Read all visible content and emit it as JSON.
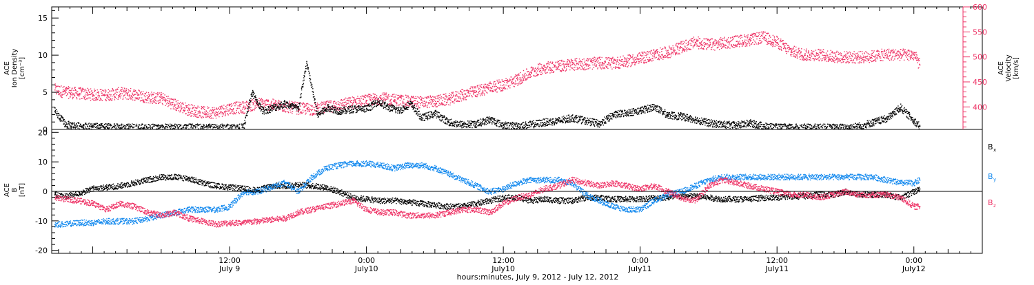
{
  "colors": {
    "black": "#000000",
    "red": "#ee3366",
    "blue": "#1188ee"
  },
  "time_axis": {
    "title": "hours:minutes, July  9, 2012 - July 12, 2012",
    "range_days": [
      7.85,
      11.25
    ],
    "ticks": [
      {
        "t": 8.5,
        "time": "12:00",
        "date": "July 9"
      },
      {
        "t": 9.0,
        "time": "0:00",
        "date": "July10"
      },
      {
        "t": 9.5,
        "time": "12:00",
        "date": "July10"
      },
      {
        "t": 10.0,
        "time": "0:00",
        "date": "July11"
      },
      {
        "t": 10.5,
        "time": "12:00",
        "date": "July11"
      },
      {
        "t": 11.0,
        "time": "0:00",
        "date": "July12"
      }
    ]
  },
  "chart_data": [
    {
      "type": "scatter",
      "panel": "top",
      "ylabel_left": [
        "ACE",
        "Ion Density",
        "[cm⁻³]"
      ],
      "ylabel_right": [
        "ACE",
        "Velocity",
        "[km/s]"
      ],
      "ylim_left": [
        0,
        16.5
      ],
      "ylim_right": [
        355,
        600
      ],
      "yticks_left": [
        "0",
        "5",
        "10",
        "15"
      ],
      "yticks_right": [
        "400",
        "450",
        "500",
        "550",
        "600"
      ],
      "series": [
        {
          "axis": "left",
          "color": "black",
          "x": [
            7.86,
            7.9,
            7.95,
            8.0,
            8.1,
            8.2,
            8.3,
            8.4,
            8.5,
            8.55,
            8.58,
            8.62,
            8.66,
            8.7,
            8.75,
            8.78,
            8.82,
            8.86,
            8.9,
            8.95,
            9.0,
            9.04,
            9.08,
            9.12,
            9.16,
            9.2,
            9.25,
            9.3,
            9.35,
            9.4,
            9.45,
            9.5,
            9.55,
            9.6,
            9.65,
            9.7,
            9.75,
            9.8,
            9.85,
            9.9,
            9.95,
            10.0,
            10.05,
            10.1,
            10.15,
            10.2,
            10.25,
            10.3,
            10.35,
            10.4,
            10.45,
            10.5,
            10.55,
            10.6,
            10.65,
            10.7,
            10.75,
            10.8,
            10.85,
            10.9,
            10.95,
            11.0,
            11.02
          ],
          "y": [
            2.5,
            0.7,
            0.5,
            0.4,
            0.3,
            0.3,
            0.3,
            0.3,
            0.3,
            0.3,
            5,
            2.5,
            3,
            3.5,
            2.8,
            9,
            2,
            3,
            2.5,
            2.8,
            2.8,
            3.8,
            3.0,
            2.6,
            3.5,
            1.6,
            2.2,
            1.0,
            0.7,
            0.8,
            1.4,
            0.6,
            0.5,
            0.7,
            1.0,
            1.2,
            1.6,
            1.2,
            0.8,
            2.0,
            2.3,
            2.6,
            3.1,
            2.0,
            1.8,
            1.4,
            0.9,
            0.7,
            0.6,
            0.9,
            0.5,
            0.3,
            0.3,
            0.3,
            0.3,
            0.3,
            0.3,
            0.5,
            1.0,
            1.5,
            3.0,
            1.2,
            0.5
          ]
        },
        {
          "axis": "right",
          "color": "red",
          "x": [
            7.86,
            7.9,
            7.95,
            8.0,
            8.05,
            8.1,
            8.15,
            8.2,
            8.25,
            8.3,
            8.35,
            8.4,
            8.45,
            8.5,
            8.55,
            8.6,
            8.65,
            8.7,
            8.75,
            8.8,
            8.85,
            8.9,
            8.95,
            9.0,
            9.05,
            9.1,
            9.15,
            9.2,
            9.25,
            9.3,
            9.35,
            9.4,
            9.45,
            9.5,
            9.55,
            9.6,
            9.65,
            9.7,
            9.75,
            9.8,
            9.85,
            9.9,
            9.95,
            10.0,
            10.05,
            10.1,
            10.15,
            10.2,
            10.25,
            10.3,
            10.35,
            10.4,
            10.45,
            10.5,
            10.55,
            10.6,
            10.65,
            10.7,
            10.75,
            10.8,
            10.85,
            10.9,
            10.95,
            11.0,
            11.02
          ],
          "y": [
            435,
            430,
            428,
            425,
            425,
            428,
            426,
            420,
            418,
            405,
            395,
            390,
            390,
            398,
            400,
            408,
            405,
            402,
            398,
            396,
            400,
            405,
            410,
            414,
            418,
            415,
            412,
            410,
            412,
            416,
            425,
            432,
            440,
            445,
            455,
            470,
            480,
            482,
            486,
            487,
            489,
            488,
            492,
            498,
            505,
            510,
            520,
            530,
            525,
            528,
            532,
            535,
            540,
            530,
            512,
            505,
            505,
            502,
            500,
            500,
            502,
            506,
            505,
            505,
            485
          ]
        }
      ]
    },
    {
      "type": "scatter",
      "panel": "bottom",
      "ylabel_left": [
        "ACE",
        "B",
        "[nT]"
      ],
      "ylim": [
        -21,
        21
      ],
      "yticks": [
        "-20",
        "-10",
        "0",
        "10",
        "20"
      ],
      "legend": [
        {
          "label": "B",
          "sub": "x",
          "color": "black"
        },
        {
          "label": "B",
          "sub": "y",
          "color": "blue"
        },
        {
          "label": "B",
          "sub": "z",
          "color": "red"
        }
      ],
      "series": [
        {
          "name": "Bx",
          "color": "black",
          "x": [
            7.86,
            7.9,
            7.95,
            8.0,
            8.05,
            8.1,
            8.15,
            8.2,
            8.25,
            8.3,
            8.35,
            8.4,
            8.45,
            8.5,
            8.55,
            8.6,
            8.65,
            8.7,
            8.75,
            8.8,
            8.85,
            8.9,
            8.95,
            9.0,
            9.05,
            9.1,
            9.15,
            9.2,
            9.25,
            9.3,
            9.35,
            9.4,
            9.45,
            9.5,
            9.55,
            9.6,
            9.65,
            9.7,
            9.75,
            9.8,
            9.85,
            9.9,
            9.95,
            10.0,
            10.05,
            10.1,
            10.15,
            10.2,
            10.25,
            10.3,
            10.35,
            10.4,
            10.45,
            10.5,
            10.55,
            10.6,
            10.65,
            10.7,
            10.75,
            10.8,
            10.85,
            10.9,
            10.95,
            11.0,
            11.02
          ],
          "y": [
            -1,
            -1.5,
            -0.5,
            1,
            1.5,
            2,
            3,
            4,
            5,
            5,
            4.5,
            3,
            2,
            1.5,
            1,
            0.5,
            2,
            2,
            2.5,
            2,
            1.5,
            0,
            -2,
            -2.5,
            -3,
            -3,
            -3.5,
            -4,
            -4.5,
            -5,
            -5,
            -4,
            -3,
            -2,
            -2,
            -3,
            -2.5,
            -3,
            -3,
            -2,
            -2,
            -2.5,
            -2.5,
            -2.5,
            -2,
            -2,
            -1.5,
            -1.5,
            -2,
            -2.5,
            -2.5,
            -2.5,
            -2,
            -2,
            -1.5,
            -1.5,
            -1,
            -1,
            0,
            -1,
            -1,
            -1,
            -2,
            0,
            1
          ]
        },
        {
          "name": "By",
          "color": "blue",
          "x": [
            7.86,
            7.9,
            7.95,
            8.0,
            8.05,
            8.1,
            8.15,
            8.2,
            8.25,
            8.3,
            8.35,
            8.4,
            8.45,
            8.5,
            8.55,
            8.6,
            8.65,
            8.7,
            8.75,
            8.8,
            8.85,
            8.9,
            8.95,
            9.0,
            9.05,
            9.1,
            9.15,
            9.2,
            9.25,
            9.3,
            9.35,
            9.4,
            9.45,
            9.5,
            9.55,
            9.6,
            9.65,
            9.7,
            9.75,
            9.8,
            9.85,
            9.9,
            9.95,
            10.0,
            10.05,
            10.1,
            10.15,
            10.2,
            10.25,
            10.3,
            10.35,
            10.4,
            10.45,
            10.5,
            10.55,
            10.6,
            10.65,
            10.7,
            10.75,
            10.8,
            10.85,
            10.9,
            10.95,
            11.0,
            11.02
          ],
          "y": [
            -11,
            -11,
            -10.5,
            -10.5,
            -10,
            -10,
            -10,
            -9,
            -8,
            -7,
            -6,
            -6,
            -6,
            -5,
            0,
            0,
            1.5,
            3,
            0,
            5,
            8,
            9,
            9.5,
            9.5,
            9,
            8,
            9,
            9,
            8,
            6,
            4,
            2,
            0,
            1,
            3,
            4,
            4,
            4,
            3,
            -1,
            -3,
            -5,
            -6,
            -6,
            -3,
            -1,
            0,
            2,
            4,
            5,
            5,
            5,
            5,
            5,
            5,
            5,
            5,
            5,
            5,
            5,
            5,
            4,
            3,
            3,
            4
          ]
        },
        {
          "name": "Bz",
          "color": "red",
          "x": [
            7.86,
            7.9,
            7.95,
            8.0,
            8.05,
            8.1,
            8.15,
            8.2,
            8.25,
            8.3,
            8.35,
            8.4,
            8.45,
            8.5,
            8.55,
            8.6,
            8.65,
            8.7,
            8.75,
            8.8,
            8.85,
            8.9,
            8.95,
            9.0,
            9.05,
            9.1,
            9.15,
            9.2,
            9.25,
            9.3,
            9.35,
            9.4,
            9.45,
            9.5,
            9.55,
            9.6,
            9.65,
            9.7,
            9.75,
            9.8,
            9.85,
            9.9,
            9.95,
            10.0,
            10.05,
            10.1,
            10.15,
            10.2,
            10.25,
            10.3,
            10.35,
            10.4,
            10.45,
            10.5,
            10.55,
            10.6,
            10.65,
            10.7,
            10.75,
            10.8,
            10.85,
            10.9,
            10.95,
            11.0,
            11.02
          ],
          "y": [
            -2,
            -2.5,
            -3,
            -4,
            -6,
            -4,
            -5,
            -7,
            -8,
            -7,
            -9,
            -10,
            -11,
            -10.5,
            -10.5,
            -10,
            -9.5,
            -9,
            -7,
            -6,
            -5,
            -4,
            -3,
            -6,
            -7,
            -7,
            -8,
            -8,
            -8,
            -7,
            -6,
            -6,
            -7,
            -4,
            -2,
            -1,
            1,
            2,
            4,
            3,
            2,
            3,
            2,
            1,
            2,
            0,
            -2,
            -3,
            2,
            4,
            3,
            2,
            1,
            0,
            -1,
            -1,
            -2,
            -1,
            0,
            -1,
            -1,
            -1,
            -2,
            -5,
            -5
          ]
        }
      ]
    }
  ]
}
